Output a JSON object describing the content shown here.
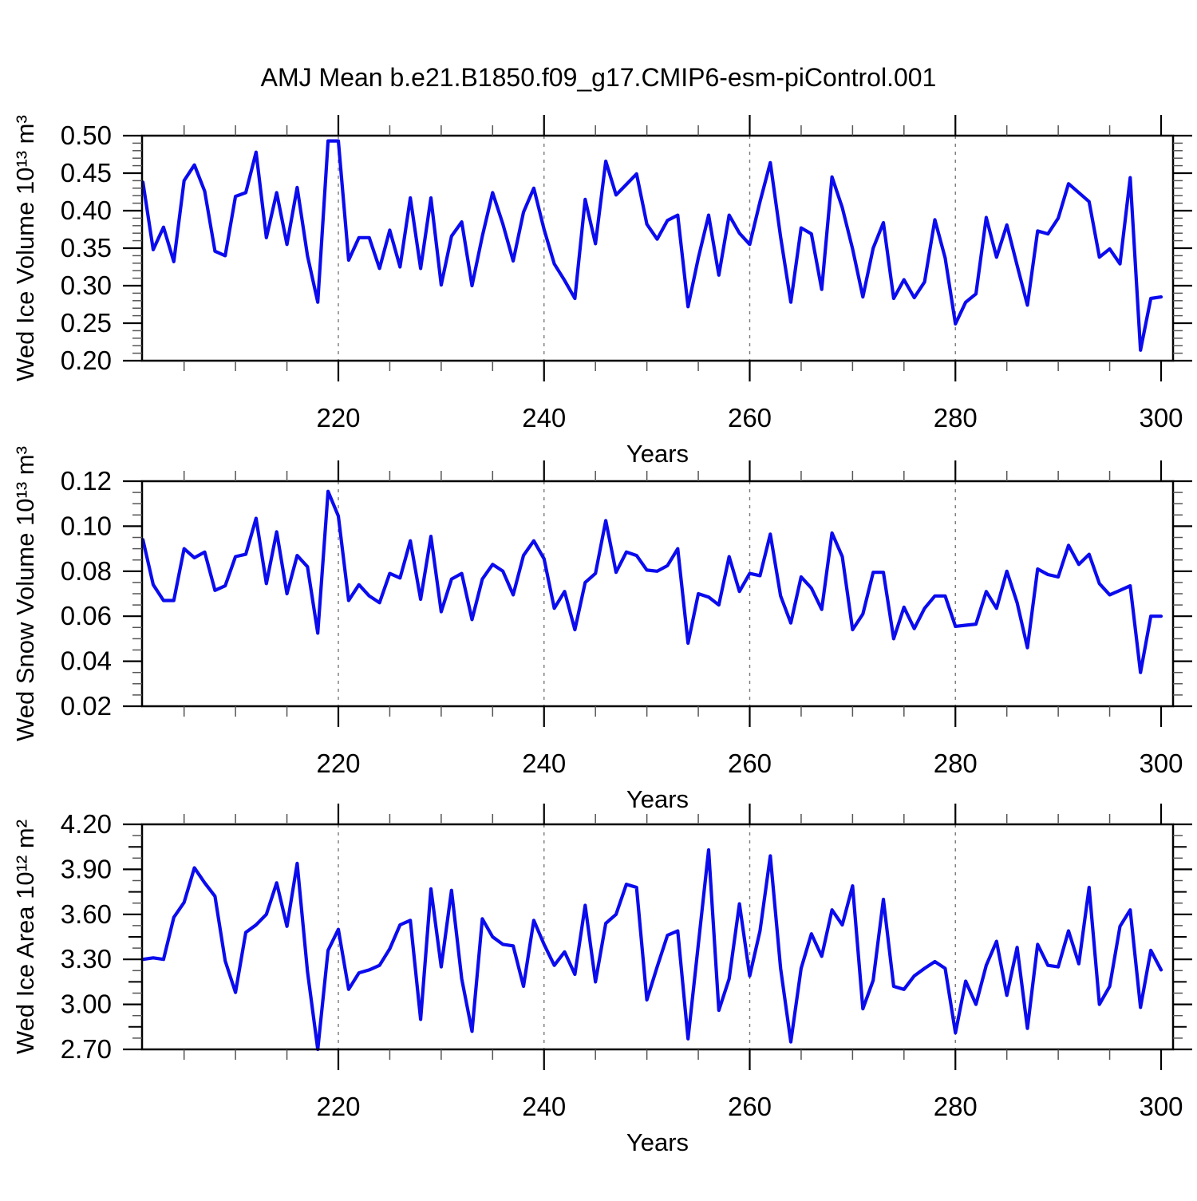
{
  "title": "AMJ Mean b.e21.B1850.f09_g17.CMIP6-esm-piControl.001",
  "colors": {
    "line": "#0b0bee",
    "grid": "#7a7a7a",
    "axis": "#000000",
    "minor_tick": "#555555",
    "background": "#ffffff"
  },
  "chart_data": [
    {
      "type": "line",
      "title": "AMJ Mean b.e21.B1850.f09_g17.CMIP6-esm-piControl.001",
      "ylabel": "Wed Ice Volume 10¹³ m³",
      "xlabel": "Years",
      "legend": "none",
      "grid": "vertical-dashed",
      "xlim": [
        200.9,
        301.2
      ],
      "ylim": [
        0.2,
        0.5
      ],
      "x_start": 201,
      "x_step": 1,
      "xtick_values": [
        220,
        240,
        260,
        280,
        300
      ],
      "xtick_labels": [
        "220",
        "240",
        "260",
        "280",
        "300"
      ],
      "xtick_minor_step": 5,
      "gridlines_x": [
        220,
        240,
        260,
        280
      ],
      "ytick_values": [
        0.2,
        0.25,
        0.3,
        0.35,
        0.4,
        0.45,
        0.5
      ],
      "ytick_labels": [
        "0.20",
        "0.25",
        "0.30",
        "0.35",
        "0.40",
        "0.45",
        "0.50"
      ],
      "ytick_minor_step": 0.01,
      "values": [
        0.438,
        0.348,
        0.378,
        0.332,
        0.44,
        0.461,
        0.426,
        0.346,
        0.34,
        0.419,
        0.424,
        0.478,
        0.364,
        0.424,
        0.355,
        0.431,
        0.34,
        0.278,
        0.493,
        0.493,
        0.334,
        0.364,
        0.364,
        0.323,
        0.374,
        0.325,
        0.417,
        0.323,
        0.417,
        0.301,
        0.366,
        0.385,
        0.3,
        0.366,
        0.424,
        0.382,
        0.333,
        0.398,
        0.43,
        0.375,
        0.329,
        0.307,
        0.283,
        0.415,
        0.356,
        0.466,
        0.421,
        0.435,
        0.449,
        0.382,
        0.362,
        0.387,
        0.394,
        0.272,
        0.337,
        0.394,
        0.314,
        0.394,
        0.37,
        0.355,
        0.412,
        0.464,
        0.365,
        0.278,
        0.377,
        0.369,
        0.295,
        0.445,
        0.404,
        0.349,
        0.285,
        0.35,
        0.384,
        0.283,
        0.308,
        0.284,
        0.305,
        0.388,
        0.337,
        0.249,
        0.278,
        0.289,
        0.391,
        0.338,
        0.381,
        0.327,
        0.274,
        0.373,
        0.369,
        0.39,
        0.436,
        0.424,
        0.412,
        0.338,
        0.349,
        0.329,
        0.444,
        0.214,
        0.283,
        0.285
      ]
    },
    {
      "type": "line",
      "ylabel": "Wed Snow Volume 10¹³ m³",
      "xlabel": "Years",
      "legend": "none",
      "grid": "vertical-dashed",
      "xlim": [
        200.9,
        301.2
      ],
      "ylim": [
        0.02,
        0.12
      ],
      "x_start": 201,
      "x_step": 1,
      "xtick_values": [
        220,
        240,
        260,
        280,
        300
      ],
      "xtick_labels": [
        "220",
        "240",
        "260",
        "280",
        "300"
      ],
      "xtick_minor_step": 5,
      "gridlines_x": [
        220,
        240,
        260,
        280
      ],
      "ytick_values": [
        0.02,
        0.04,
        0.06,
        0.08,
        0.1,
        0.12
      ],
      "ytick_labels": [
        "0.02",
        "0.04",
        "0.06",
        "0.08",
        "0.10",
        "0.12"
      ],
      "ytick_minor_step": 0.005,
      "values": [
        0.094,
        0.074,
        0.067,
        0.067,
        0.09,
        0.086,
        0.0885,
        0.0715,
        0.0735,
        0.0865,
        0.0875,
        0.1035,
        0.0745,
        0.0975,
        0.07,
        0.087,
        0.082,
        0.0525,
        0.1155,
        0.1045,
        0.067,
        0.074,
        0.069,
        0.066,
        0.079,
        0.077,
        0.0935,
        0.0675,
        0.0955,
        0.062,
        0.0765,
        0.079,
        0.0585,
        0.0765,
        0.083,
        0.08,
        0.0695,
        0.087,
        0.0935,
        0.0855,
        0.0635,
        0.071,
        0.054,
        0.075,
        0.079,
        0.1025,
        0.0795,
        0.0885,
        0.087,
        0.0805,
        0.08,
        0.0825,
        0.09,
        0.048,
        0.07,
        0.0685,
        0.065,
        0.0865,
        0.071,
        0.079,
        0.078,
        0.0965,
        0.069,
        0.057,
        0.0775,
        0.0725,
        0.063,
        0.097,
        0.0865,
        0.054,
        0.061,
        0.0795,
        0.0795,
        0.05,
        0.064,
        0.0545,
        0.0635,
        0.069,
        0.069,
        0.0555,
        0.056,
        0.0565,
        0.071,
        0.0635,
        0.08,
        0.066,
        0.046,
        0.081,
        0.0785,
        0.0775,
        0.0915,
        0.083,
        0.0875,
        0.0745,
        0.0695,
        0.0715,
        0.0735,
        0.035,
        0.06,
        0.06
      ]
    },
    {
      "type": "line",
      "ylabel": "Wed Ice Area 10¹² m²",
      "xlabel": "Years",
      "legend": "none",
      "grid": "vertical-dashed",
      "xlim": [
        200.9,
        301.2
      ],
      "ylim": [
        2.7,
        4.2
      ],
      "x_start": 201,
      "x_step": 1,
      "xtick_values": [
        220,
        240,
        260,
        280,
        300
      ],
      "xtick_labels": [
        "220",
        "240",
        "260",
        "280",
        "300"
      ],
      "xtick_minor_step": 5,
      "gridlines_x": [
        220,
        240,
        260,
        280
      ],
      "ytick_values": [
        2.7,
        3.0,
        3.3,
        3.6,
        3.9,
        4.2
      ],
      "ytick_labels": [
        "2.70",
        "3.00",
        "3.30",
        "3.60",
        "3.90",
        "4.20"
      ],
      "ytick_minor_step": 0.075,
      "ytick_mid_step": 0.15,
      "values": [
        3.3,
        3.31,
        3.3,
        3.58,
        3.68,
        3.91,
        3.81,
        3.72,
        3.29,
        3.08,
        3.48,
        3.53,
        3.6,
        3.81,
        3.52,
        3.94,
        3.22,
        2.7,
        3.36,
        3.5,
        3.1,
        3.21,
        3.23,
        3.26,
        3.37,
        3.53,
        3.56,
        2.9,
        3.77,
        3.25,
        3.76,
        3.17,
        2.82,
        3.57,
        3.45,
        3.4,
        3.39,
        3.12,
        3.56,
        3.4,
        3.26,
        3.35,
        3.2,
        3.66,
        3.15,
        3.54,
        3.6,
        3.8,
        3.78,
        3.03,
        3.25,
        3.46,
        3.49,
        2.77,
        3.4,
        4.03,
        2.96,
        3.17,
        3.67,
        3.19,
        3.49,
        3.99,
        3.24,
        2.75,
        3.24,
        3.47,
        3.32,
        3.63,
        3.53,
        3.79,
        2.97,
        3.16,
        3.7,
        3.12,
        3.1,
        3.19,
        3.24,
        3.285,
        3.24,
        2.81,
        3.155,
        3.0,
        3.26,
        3.42,
        3.06,
        3.38,
        2.84,
        3.4,
        3.26,
        3.25,
        3.49,
        3.27,
        3.78,
        3.0,
        3.12,
        3.52,
        3.63,
        2.98,
        3.36,
        3.23
      ]
    }
  ]
}
